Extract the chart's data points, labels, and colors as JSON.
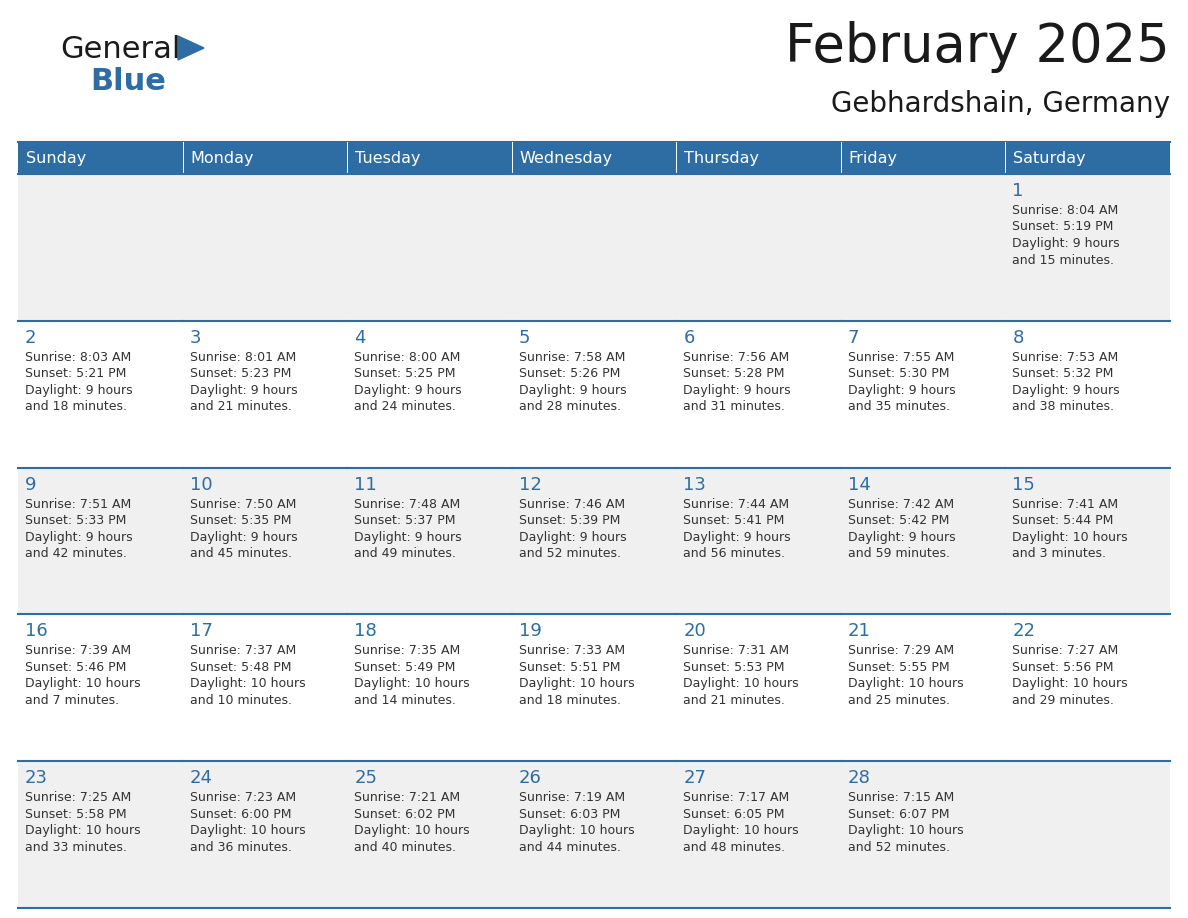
{
  "title": "February 2025",
  "subtitle": "Gebhardshain, Germany",
  "header_bg": "#2E6DA4",
  "header_text_color": "#FFFFFF",
  "cell_bg_odd": "#F0F0F0",
  "cell_bg_even": "#FFFFFF",
  "grid_line_color": "#2E6DA4",
  "day_headers": [
    "Sunday",
    "Monday",
    "Tuesday",
    "Wednesday",
    "Thursday",
    "Friday",
    "Saturday"
  ],
  "title_color": "#1a1a1a",
  "subtitle_color": "#1a1a1a",
  "number_color": "#2E6DA4",
  "text_color": "#333333",
  "logo_general_color": "#1a1a1a",
  "logo_blue_color": "#2E6DA4",
  "fig_width": 11.88,
  "fig_height": 9.18,
  "calendar_data": [
    [
      {
        "day": null,
        "lines": []
      },
      {
        "day": null,
        "lines": []
      },
      {
        "day": null,
        "lines": []
      },
      {
        "day": null,
        "lines": []
      },
      {
        "day": null,
        "lines": []
      },
      {
        "day": null,
        "lines": []
      },
      {
        "day": 1,
        "lines": [
          "Sunrise: 8:04 AM",
          "Sunset: 5:19 PM",
          "Daylight: 9 hours",
          "and 15 minutes."
        ]
      }
    ],
    [
      {
        "day": 2,
        "lines": [
          "Sunrise: 8:03 AM",
          "Sunset: 5:21 PM",
          "Daylight: 9 hours",
          "and 18 minutes."
        ]
      },
      {
        "day": 3,
        "lines": [
          "Sunrise: 8:01 AM",
          "Sunset: 5:23 PM",
          "Daylight: 9 hours",
          "and 21 minutes."
        ]
      },
      {
        "day": 4,
        "lines": [
          "Sunrise: 8:00 AM",
          "Sunset: 5:25 PM",
          "Daylight: 9 hours",
          "and 24 minutes."
        ]
      },
      {
        "day": 5,
        "lines": [
          "Sunrise: 7:58 AM",
          "Sunset: 5:26 PM",
          "Daylight: 9 hours",
          "and 28 minutes."
        ]
      },
      {
        "day": 6,
        "lines": [
          "Sunrise: 7:56 AM",
          "Sunset: 5:28 PM",
          "Daylight: 9 hours",
          "and 31 minutes."
        ]
      },
      {
        "day": 7,
        "lines": [
          "Sunrise: 7:55 AM",
          "Sunset: 5:30 PM",
          "Daylight: 9 hours",
          "and 35 minutes."
        ]
      },
      {
        "day": 8,
        "lines": [
          "Sunrise: 7:53 AM",
          "Sunset: 5:32 PM",
          "Daylight: 9 hours",
          "and 38 minutes."
        ]
      }
    ],
    [
      {
        "day": 9,
        "lines": [
          "Sunrise: 7:51 AM",
          "Sunset: 5:33 PM",
          "Daylight: 9 hours",
          "and 42 minutes."
        ]
      },
      {
        "day": 10,
        "lines": [
          "Sunrise: 7:50 AM",
          "Sunset: 5:35 PM",
          "Daylight: 9 hours",
          "and 45 minutes."
        ]
      },
      {
        "day": 11,
        "lines": [
          "Sunrise: 7:48 AM",
          "Sunset: 5:37 PM",
          "Daylight: 9 hours",
          "and 49 minutes."
        ]
      },
      {
        "day": 12,
        "lines": [
          "Sunrise: 7:46 AM",
          "Sunset: 5:39 PM",
          "Daylight: 9 hours",
          "and 52 minutes."
        ]
      },
      {
        "day": 13,
        "lines": [
          "Sunrise: 7:44 AM",
          "Sunset: 5:41 PM",
          "Daylight: 9 hours",
          "and 56 minutes."
        ]
      },
      {
        "day": 14,
        "lines": [
          "Sunrise: 7:42 AM",
          "Sunset: 5:42 PM",
          "Daylight: 9 hours",
          "and 59 minutes."
        ]
      },
      {
        "day": 15,
        "lines": [
          "Sunrise: 7:41 AM",
          "Sunset: 5:44 PM",
          "Daylight: 10 hours",
          "and 3 minutes."
        ]
      }
    ],
    [
      {
        "day": 16,
        "lines": [
          "Sunrise: 7:39 AM",
          "Sunset: 5:46 PM",
          "Daylight: 10 hours",
          "and 7 minutes."
        ]
      },
      {
        "day": 17,
        "lines": [
          "Sunrise: 7:37 AM",
          "Sunset: 5:48 PM",
          "Daylight: 10 hours",
          "and 10 minutes."
        ]
      },
      {
        "day": 18,
        "lines": [
          "Sunrise: 7:35 AM",
          "Sunset: 5:49 PM",
          "Daylight: 10 hours",
          "and 14 minutes."
        ]
      },
      {
        "day": 19,
        "lines": [
          "Sunrise: 7:33 AM",
          "Sunset: 5:51 PM",
          "Daylight: 10 hours",
          "and 18 minutes."
        ]
      },
      {
        "day": 20,
        "lines": [
          "Sunrise: 7:31 AM",
          "Sunset: 5:53 PM",
          "Daylight: 10 hours",
          "and 21 minutes."
        ]
      },
      {
        "day": 21,
        "lines": [
          "Sunrise: 7:29 AM",
          "Sunset: 5:55 PM",
          "Daylight: 10 hours",
          "and 25 minutes."
        ]
      },
      {
        "day": 22,
        "lines": [
          "Sunrise: 7:27 AM",
          "Sunset: 5:56 PM",
          "Daylight: 10 hours",
          "and 29 minutes."
        ]
      }
    ],
    [
      {
        "day": 23,
        "lines": [
          "Sunrise: 7:25 AM",
          "Sunset: 5:58 PM",
          "Daylight: 10 hours",
          "and 33 minutes."
        ]
      },
      {
        "day": 24,
        "lines": [
          "Sunrise: 7:23 AM",
          "Sunset: 6:00 PM",
          "Daylight: 10 hours",
          "and 36 minutes."
        ]
      },
      {
        "day": 25,
        "lines": [
          "Sunrise: 7:21 AM",
          "Sunset: 6:02 PM",
          "Daylight: 10 hours",
          "and 40 minutes."
        ]
      },
      {
        "day": 26,
        "lines": [
          "Sunrise: 7:19 AM",
          "Sunset: 6:03 PM",
          "Daylight: 10 hours",
          "and 44 minutes."
        ]
      },
      {
        "day": 27,
        "lines": [
          "Sunrise: 7:17 AM",
          "Sunset: 6:05 PM",
          "Daylight: 10 hours",
          "and 48 minutes."
        ]
      },
      {
        "day": 28,
        "lines": [
          "Sunrise: 7:15 AM",
          "Sunset: 6:07 PM",
          "Daylight: 10 hours",
          "and 52 minutes."
        ]
      },
      {
        "day": null,
        "lines": []
      }
    ]
  ]
}
